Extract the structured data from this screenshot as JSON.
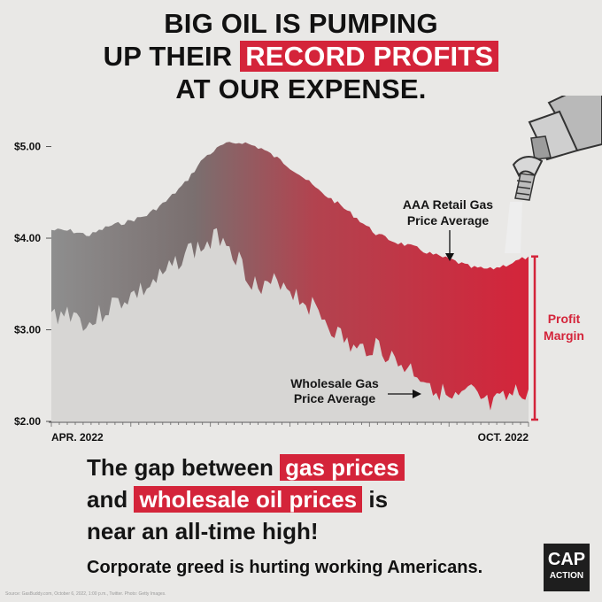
{
  "headline": {
    "line1": "BIG OIL IS PUMPING",
    "line2_prefix": "UP THEIR",
    "line2_highlight": "RECORD PROFITS",
    "line3": "AT OUR EXPENSE."
  },
  "colors": {
    "accent": "#d4243a",
    "dark": "#1e1e1e",
    "gray_area": "#d7d6d4",
    "retail_gray": "#8a8a8a"
  },
  "chart_data": {
    "type": "area",
    "x": [
      "APR. 2022",
      "",
      "",
      "",
      "",
      "",
      "",
      "",
      "",
      "",
      "",
      "",
      "",
      "",
      "",
      "",
      "",
      "",
      "",
      "",
      "",
      "",
      "",
      "",
      "",
      "OCT. 2022"
    ],
    "series": [
      {
        "name": "AAA Retail Gas Price Average",
        "values": [
          4.09,
          4.08,
          4.03,
          4.13,
          4.18,
          4.25,
          4.4,
          4.6,
          4.88,
          5.02,
          5.05,
          4.98,
          4.85,
          4.7,
          4.52,
          4.38,
          4.22,
          4.05,
          3.96,
          3.9,
          3.82,
          3.76,
          3.68,
          3.66,
          3.72,
          3.8
        ]
      },
      {
        "name": "Wholesale Gas Price Average",
        "values": [
          3.15,
          3.2,
          3.05,
          3.25,
          3.35,
          3.45,
          3.6,
          3.85,
          3.9,
          4.05,
          3.7,
          3.4,
          3.55,
          3.35,
          3.2,
          2.95,
          2.75,
          2.85,
          2.65,
          2.55,
          2.4,
          2.2,
          2.3,
          2.15,
          2.25,
          2.35
        ]
      }
    ],
    "y_ticks": [
      "$5.00",
      "$4.00",
      "$3.00",
      "$2.00"
    ],
    "ylim": [
      2.0,
      5.15
    ],
    "x_labels": {
      "start": "APR. 2022",
      "end": "OCT. 2022"
    },
    "annotations": {
      "retail": "AAA Retail Gas Price Average",
      "retail_line1": "AAA Retail Gas",
      "retail_line2": "Price Average",
      "wholesale_line1": "Wholesale Gas",
      "wholesale_line2": "Price Average",
      "margin_line1": "Profit",
      "margin_line2": "Margin"
    },
    "grid": false
  },
  "body": {
    "line1_prefix": "The gap between",
    "line1_highlight": "gas prices",
    "line2_prefix": "and",
    "line2_highlight": "wholesale oil prices",
    "line2_suffix": "is",
    "line3": "near an all-time high!"
  },
  "tagline": "Corporate greed is hurting working Americans.",
  "logo": {
    "line1": "CAP",
    "line2": "ACTION"
  },
  "source": "Source: GasBuddy.com, October 6, 2022, 1:00 p.m., Twitter. Photo: Getty Images."
}
